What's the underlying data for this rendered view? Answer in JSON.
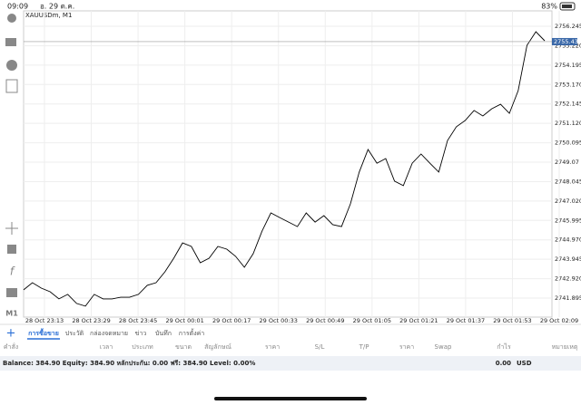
{
  "status_bar": {
    "time": "09:09",
    "date": "อ. 29 ต.ค.",
    "battery": "83%"
  },
  "chart": {
    "type": "line",
    "symbol": "XAUUSDm, M1",
    "timeframe": "M1",
    "color": "#000000",
    "grid": true,
    "values": [
      2742.33,
      2742.71,
      2742.42,
      2742.23,
      2741.85,
      2742.09,
      2741.61,
      2741.47,
      2742.09,
      2741.85,
      2741.85,
      2741.94,
      2741.94,
      2742.09,
      2742.57,
      2742.71,
      2743.28,
      2744.0,
      2744.81,
      2744.62,
      2743.76,
      2744.0,
      2744.62,
      2744.48,
      2744.1,
      2743.52,
      2744.24,
      2745.44,
      2746.39,
      2746.15,
      2745.91,
      2745.67,
      2746.39,
      2745.91,
      2746.25,
      2745.77,
      2745.67,
      2746.87,
      2748.55,
      2749.74,
      2749.02,
      2749.26,
      2748.07,
      2747.83,
      2749.02,
      2749.5,
      2749.02,
      2748.55,
      2750.22,
      2750.94,
      2751.27,
      2751.8,
      2751.51,
      2751.89,
      2752.13,
      2751.65,
      2752.85,
      2755.24,
      2755.96,
      2755.48
    ],
    "ylim": [
      2740.89,
      2757.06
    ],
    "yticks": [
      2756.245,
      {
        "value": 2755.22,
        "label": "2755.220"
      },
      2754.195,
      {
        "value": 2753.17,
        "label": "2753.170"
      },
      2752.145,
      {
        "value": 2751.12,
        "label": "2751.120"
      },
      2750.095,
      2749.07,
      2748.045,
      {
        "value": 2747.02,
        "label": "2747.020"
      },
      2745.995,
      {
        "value": 2744.97,
        "label": "2744.970"
      },
      2743.945,
      {
        "value": 2742.92,
        "label": "2742.920"
      },
      2741.895
    ],
    "xticks": [
      "28 Oct 23:13",
      "28 Oct 23:29",
      "28 Oct 23:45",
      "29 Oct 00:01",
      "29 Oct 00:17",
      "29 Oct 00:33",
      "29 Oct 00:49",
      "29 Oct 01:05",
      "29 Oct 01:21",
      "29 Oct 01:37",
      "29 Oct 01:53",
      "29 Oct 02:09"
    ],
    "current_price": 2755.435
  },
  "tabs": [
    "การซื้อขาย",
    "ประวัติ",
    "กล่องจดหมาย",
    "ข่าว",
    "บันทึก",
    "การตั้งค่า"
  ],
  "columns": [
    "คำสั่ง",
    "เวลา",
    "ประเภท",
    "ขนาด",
    "สัญลักษณ์",
    "ราคา",
    "S/L",
    "T/P",
    "ราคา",
    "Swap",
    "กำไร",
    "หมายเหตุ"
  ],
  "account": {
    "summary": "Balance: 384.90 Equity: 384.90 หลักประกัน: 0.00 ฟรี: 384.90 Level: 0.00%",
    "profit": "0.00",
    "currency": "USD"
  }
}
